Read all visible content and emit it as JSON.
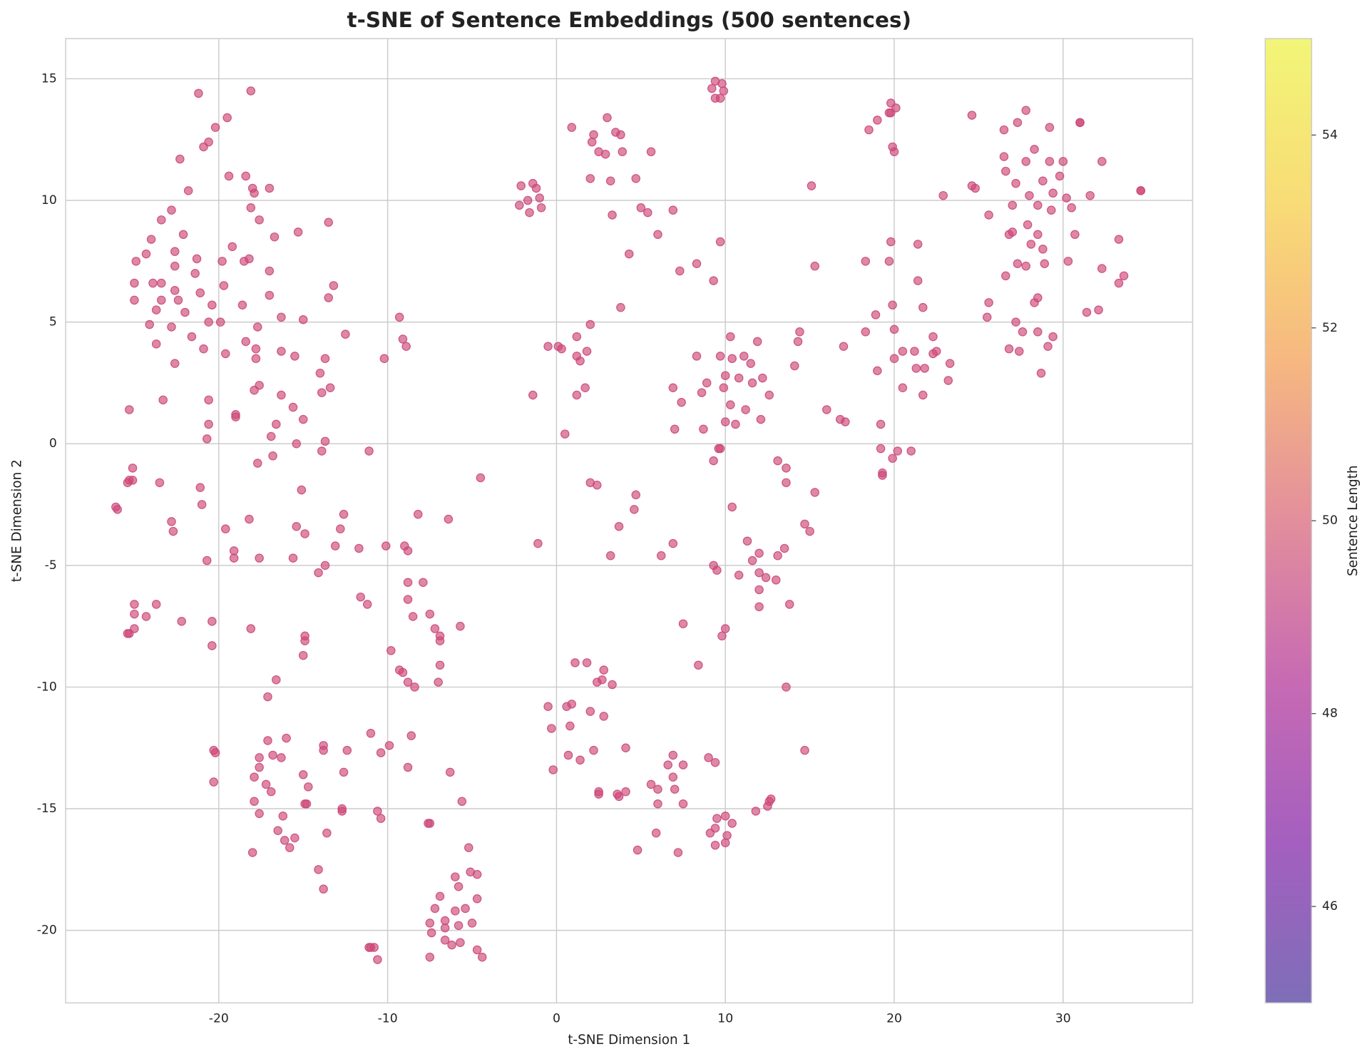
{
  "chart_data": {
    "type": "scatter",
    "title": "t-SNE of Sentence Embeddings (500 sentences)",
    "x_label": "t-SNE Dimension 1",
    "y_label": "t-SNE Dimension 2",
    "xlim": [
      -29.07,
      37.67
    ],
    "ylim": [
      -22.98,
      16.65
    ],
    "xticks": [
      -20,
      -10,
      0,
      10,
      20,
      30
    ],
    "yticks": [
      -20,
      -15,
      -10,
      -5,
      0,
      5,
      10,
      15
    ],
    "grid": true,
    "color": "#cc4778",
    "colorbar": {
      "label": "Sentence Length",
      "lim": [
        45,
        55
      ],
      "ticks": [
        46,
        48,
        50,
        52,
        54
      ],
      "colormap": [
        "#7e6eb8",
        "#a45fbf",
        "#c76ab3",
        "#e38e9c",
        "#f6b880",
        "#f8dc76",
        "#f2f677"
      ]
    },
    "x": [
      -21.2,
      -18.1,
      -19.5,
      -20.2,
      -20.6,
      -20.9,
      -22.3,
      -19.4,
      -18.4,
      -17.0,
      -18.0,
      -17.9,
      -21.8,
      -22.8,
      -23.4,
      -18.1,
      -17.6,
      -13.5,
      -22.1,
      -24.0,
      -16.7,
      -15.3,
      -24.3,
      -22.6,
      -19.2,
      -21.3,
      -19.8,
      -18.5,
      -18.2,
      -24.9,
      -22.6,
      -17.0,
      -21.4,
      -25.0,
      -23.9,
      -23.4,
      -19.7,
      -22.6,
      -21.1,
      -13.2,
      -25.0,
      -23.4,
      -22.4,
      -20.4,
      -18.6,
      -17.0,
      -13.5,
      -23.7,
      -22.0,
      -16.3,
      -15.0,
      -24.1,
      -22.8,
      -19.9,
      -20.6,
      -17.7,
      -12.5,
      -21.6,
      -18.4,
      -23.7,
      -20.9,
      -17.8,
      -16.3,
      -19.6,
      -17.8,
      -15.5,
      -13.7,
      -22.6,
      -14.0,
      -17.6,
      -17.9,
      -13.4,
      -13.9,
      -16.3,
      -23.3,
      -20.6,
      -15.6,
      -25.3,
      -19.0,
      -19.0,
      -15.0,
      -20.6,
      -16.6,
      -16.9,
      -20.7,
      -13.7,
      -15.4,
      -11.1,
      -13.9,
      -16.8,
      -17.7,
      -9.3,
      -9.1,
      -8.9,
      -10.2,
      -25.1,
      -25.3,
      -25.1,
      -25.4,
      -23.5,
      -21.1,
      -15.1,
      -26.1,
      -26.0,
      -21.0,
      -12.6,
      -8.2,
      -22.8,
      -18.2,
      -22.7,
      -19.6,
      -15.4,
      -14.9,
      -12.8,
      -13.1,
      -11.7,
      -10.1,
      -19.1,
      -20.7,
      -19.1,
      -17.6,
      -15.6,
      -13.7,
      -14.1,
      -9.0,
      -8.8,
      -8.8,
      -7.9,
      -6.4,
      -4.5,
      -11.6,
      -11.2,
      -8.8,
      -8.5,
      -25.0,
      -23.7,
      -25.0,
      -24.3,
      -22.2,
      -20.4,
      -25.0,
      -25.3,
      -25.4,
      -18.1,
      -14.9,
      -14.9,
      -20.4,
      -7.5,
      -7.2,
      -6.9,
      -6.9,
      -5.7,
      -15.0,
      -9.8,
      -6.9,
      -9.3,
      -9.1,
      -8.8,
      -8.4,
      -7.0,
      -16.6,
      -17.1,
      -11.0,
      -8.6,
      -9.9,
      -10.4,
      -17.1,
      -16.0,
      -13.8,
      -13.8,
      -12.4,
      -16.8,
      -17.6,
      -16.3,
      -20.3,
      -20.2,
      -17.6,
      -8.8,
      -6.3,
      -12.6,
      -15.0,
      -17.9,
      -20.3,
      -17.2,
      -14.7,
      -16.9,
      -17.9,
      -14.9,
      -14.8,
      -12.7,
      -12.7,
      -10.6,
      -17.6,
      -16.2,
      -10.4,
      -7.6,
      -7.5,
      -5.6,
      -16.5,
      -13.6,
      -15.5,
      -16.1,
      -15.8,
      -5.2,
      -18.0,
      -14.1,
      -4.7,
      -5.1,
      -6.0,
      -13.8,
      -5.8,
      -4.7,
      -6.9,
      -7.2,
      -6.0,
      -5.4,
      -7.5,
      -6.6,
      -5.8,
      -5.0,
      -6.6,
      -7.4,
      -6.6,
      -5.7,
      -6.2,
      -4.7,
      -11.1,
      -11.0,
      -10.8,
      -7.5,
      -4.4,
      -10.6,
      0.9,
      3.0,
      3.5,
      3.8,
      2.2,
      2.1,
      2.5,
      2.9,
      3.9,
      5.6,
      2.0,
      3.2,
      4.7,
      -2.1,
      -1.4,
      -1.2,
      -2.2,
      -1.7,
      -1.0,
      -0.9,
      -1.6,
      3.3,
      5.0,
      5.4,
      6.9,
      6.0,
      4.3,
      7.3,
      8.3,
      9.3,
      3.8,
      9.4,
      9.8,
      9.2,
      9.9,
      9.4,
      9.7,
      9.7,
      2.0,
      1.2,
      1.2,
      1.4,
      1.8,
      -0.5,
      0.1,
      0.3,
      1.7,
      1.2,
      -1.4,
      0.5,
      10.3,
      11.9,
      14.4,
      14.3,
      8.3,
      9.7,
      10.4,
      11.1,
      11.5,
      14.1,
      10.0,
      10.8,
      12.2,
      6.9,
      8.9,
      9.9,
      11.6,
      8.6,
      12.6,
      7.4,
      10.3,
      11.2,
      7.0,
      8.7,
      10.0,
      10.6,
      12.1,
      9.6,
      9.7,
      9.3,
      13.1,
      13.6,
      13.6,
      15.3,
      2.0,
      2.4,
      4.7,
      4.6,
      10.4,
      3.7,
      -1.1,
      3.2,
      6.9,
      6.2,
      14.7,
      15.0,
      11.3,
      12.0,
      13.5,
      11.6,
      13.1,
      9.3,
      9.5,
      10.8,
      12.0,
      12.4,
      13.0,
      12.0,
      12.0,
      13.8,
      7.5,
      10.0,
      9.8,
      8.4,
      13.6,
      1.1,
      1.8,
      2.8,
      2.4,
      2.7,
      3.3,
      -0.5,
      0.6,
      0.9,
      2.0,
      2.8,
      -0.3,
      0.8,
      4.1,
      2.2,
      0.7,
      1.4,
      -0.2,
      9.0,
      9.4,
      6.9,
      6.6,
      7.5,
      6.9,
      14.7,
      5.6,
      6.0,
      7.0,
      2.5,
      2.5,
      3.6,
      3.7,
      4.1,
      6.0,
      7.5,
      12.7,
      12.6,
      12.5,
      11.8,
      9.5,
      10.0,
      10.4,
      9.4,
      5.9,
      9.1,
      10.1,
      9.4,
      10.0,
      4.8,
      7.2,
      19.8,
      19.7,
      19.8,
      20.1,
      19.0,
      18.5,
      19.9,
      20.0,
      15.1,
      15.3,
      22.9,
      24.6,
      26.5,
      27.3,
      27.8,
      29.2,
      31.0,
      31.0,
      28.3,
      26.5,
      27.8,
      29.2,
      30.0,
      32.3,
      26.6,
      29.8,
      24.6,
      24.8,
      27.2,
      28.8,
      28.0,
      29.4,
      30.2,
      31.6,
      34.6,
      34.6,
      27.0,
      28.5,
      29.3,
      30.5,
      25.6,
      27.9,
      26.8,
      27.0,
      28.5,
      30.7,
      33.3,
      21.4,
      19.8,
      28.1,
      28.8,
      18.3,
      19.7,
      27.3,
      27.8,
      28.9,
      30.3,
      32.3,
      33.6,
      26.6,
      21.4,
      33.3,
      28.5,
      28.3,
      25.6,
      19.9,
      21.7,
      31.4,
      32.1,
      18.9,
      25.5,
      27.2,
      27.6,
      28.5,
      29.4,
      18.3,
      20.0,
      22.3,
      26.8,
      27.4,
      29.1,
      20.5,
      21.2,
      22.3,
      22.5,
      20.0,
      21.3,
      21.8,
      23.3,
      17.0,
      19.0,
      23.2,
      28.7,
      20.5,
      21.7,
      16.0,
      16.8,
      17.1,
      19.2,
      19.2,
      20.2,
      21.0,
      19.9,
      19.3,
      19.3
    ],
    "values": [
      14.4,
      14.5,
      13.4,
      13.0,
      12.4,
      12.2,
      11.7,
      11.0,
      11.0,
      10.5,
      10.5,
      10.3,
      10.4,
      9.6,
      9.2,
      9.7,
      9.2,
      9.1,
      8.6,
      8.4,
      8.5,
      8.7,
      7.8,
      7.9,
      8.1,
      7.6,
      7.5,
      7.5,
      7.6,
      7.5,
      7.3,
      7.1,
      7.0,
      6.6,
      6.6,
      6.6,
      6.5,
      6.3,
      6.2,
      6.5,
      5.9,
      5.9,
      5.9,
      5.7,
      5.7,
      6.1,
      6.0,
      5.5,
      5.4,
      5.2,
      5.1,
      4.9,
      4.8,
      5.0,
      5.0,
      4.8,
      4.5,
      4.4,
      4.2,
      4.1,
      3.9,
      3.9,
      3.8,
      3.7,
      3.5,
      3.6,
      3.5,
      3.3,
      2.9,
      2.4,
      2.2,
      2.3,
      2.1,
      2.0,
      1.8,
      1.8,
      1.5,
      1.4,
      1.1,
      1.2,
      1.0,
      0.8,
      0.8,
      0.3,
      0.2,
      0.1,
      0.0,
      -0.3,
      -0.3,
      -0.5,
      -0.8,
      5.2,
      4.3,
      4.0,
      3.5,
      -1.0,
      -1.5,
      -1.5,
      -1.6,
      -1.6,
      -1.8,
      -1.9,
      -2.6,
      -2.7,
      -2.5,
      -2.9,
      -2.9,
      -3.2,
      -3.1,
      -3.6,
      -3.5,
      -3.4,
      -3.7,
      -3.5,
      -4.2,
      -4.3,
      -4.2,
      -4.4,
      -4.8,
      -4.7,
      -4.7,
      -4.7,
      -5.0,
      -5.3,
      -4.2,
      -4.4,
      -5.7,
      -5.7,
      -3.1,
      -1.4,
      -6.3,
      -6.6,
      -6.4,
      -7.1,
      -6.6,
      -6.6,
      -7.0,
      -7.1,
      -7.3,
      -7.3,
      -7.6,
      -7.8,
      -7.8,
      -7.6,
      -7.9,
      -8.1,
      -8.3,
      -7.0,
      -7.6,
      -7.9,
      -8.1,
      -7.5,
      -8.7,
      -8.5,
      -9.1,
      -9.3,
      -9.4,
      -9.8,
      -10.0,
      -9.8,
      -9.7,
      -10.4,
      -11.9,
      -12.0,
      -12.4,
      -12.7,
      -12.2,
      -12.1,
      -12.4,
      -12.6,
      -12.6,
      -12.8,
      -12.9,
      -12.9,
      -12.6,
      -12.7,
      -13.3,
      -13.3,
      -13.5,
      -13.5,
      -13.6,
      -13.7,
      -13.9,
      -14.0,
      -14.1,
      -14.3,
      -14.7,
      -14.8,
      -14.8,
      -15.0,
      -15.1,
      -15.1,
      -15.2,
      -15.3,
      -15.4,
      -15.6,
      -15.6,
      -14.7,
      -15.9,
      -16.0,
      -16.2,
      -16.3,
      -16.6,
      -16.6,
      -16.8,
      -17.5,
      -17.7,
      -17.6,
      -17.8,
      -18.3,
      -18.2,
      -18.7,
      -18.6,
      -19.1,
      -19.2,
      -19.1,
      -19.7,
      -19.6,
      -19.8,
      -19.7,
      -19.9,
      -20.1,
      -20.4,
      -20.5,
      -20.6,
      -20.8,
      -20.7,
      -20.7,
      -20.7,
      -21.1,
      -21.1,
      -21.2,
      13.0,
      13.4,
      12.8,
      12.7,
      12.7,
      12.4,
      12.0,
      11.9,
      12.0,
      12.0,
      10.9,
      10.8,
      10.9,
      10.6,
      10.7,
      10.5,
      9.8,
      10.0,
      10.1,
      9.7,
      9.5,
      9.4,
      9.7,
      9.5,
      9.6,
      8.6,
      7.8,
      7.1,
      7.4,
      6.7,
      5.6,
      14.9,
      14.8,
      14.6,
      14.5,
      14.2,
      14.2,
      8.3,
      4.9,
      4.4,
      3.6,
      3.4,
      3.8,
      4.0,
      4.0,
      3.9,
      2.3,
      2.0,
      2.0,
      0.4,
      4.4,
      4.2,
      4.6,
      4.2,
      3.6,
      3.6,
      3.5,
      3.6,
      3.3,
      3.2,
      2.8,
      2.7,
      2.7,
      2.3,
      2.5,
      2.3,
      2.5,
      2.1,
      2.0,
      1.7,
      1.6,
      1.4,
      0.6,
      0.6,
      0.9,
      0.8,
      1.0,
      -0.2,
      -0.2,
      -0.7,
      -0.7,
      -1.0,
      -1.6,
      -2.0,
      -1.6,
      -1.7,
      -2.1,
      -2.7,
      -2.6,
      -3.4,
      -4.1,
      -4.6,
      -4.1,
      -4.6,
      -3.3,
      -3.6,
      -4.0,
      -4.5,
      -4.3,
      -4.8,
      -4.6,
      -5.0,
      -5.2,
      -5.4,
      -5.3,
      -5.5,
      -5.6,
      -6.0,
      -6.7,
      -6.6,
      -7.4,
      -7.6,
      -7.9,
      -9.1,
      -10.0,
      -9.0,
      -9.0,
      -9.3,
      -9.8,
      -9.7,
      -9.9,
      -10.8,
      -10.8,
      -10.7,
      -11.0,
      -11.2,
      -11.7,
      -11.6,
      -12.5,
      -12.6,
      -12.8,
      -13.0,
      -13.4,
      -12.9,
      -13.1,
      -12.8,
      -13.2,
      -13.2,
      -13.7,
      -12.6,
      -14.0,
      -14.2,
      -14.2,
      -14.3,
      -14.4,
      -14.4,
      -14.5,
      -14.3,
      -14.8,
      -14.8,
      -14.6,
      -14.7,
      -14.9,
      -15.1,
      -15.4,
      -15.3,
      -15.6,
      -15.8,
      -16.0,
      -16.0,
      -16.1,
      -16.5,
      -16.4,
      -16.7,
      -16.8,
      14.0,
      13.6,
      13.6,
      13.8,
      13.3,
      12.9,
      12.2,
      12.0,
      10.6,
      7.3,
      10.2,
      13.5,
      12.9,
      13.2,
      13.7,
      13.0,
      13.2,
      13.2,
      12.1,
      11.8,
      11.6,
      11.6,
      11.6,
      11.6,
      11.2,
      11.0,
      10.6,
      10.5,
      10.7,
      10.8,
      10.2,
      10.3,
      10.1,
      10.2,
      10.4,
      10.4,
      9.8,
      9.8,
      9.6,
      9.7,
      9.4,
      9.0,
      8.6,
      8.7,
      8.6,
      8.6,
      8.4,
      8.2,
      8.3,
      8.2,
      8.0,
      7.5,
      7.5,
      7.4,
      7.3,
      7.4,
      7.5,
      7.2,
      6.9,
      6.9,
      6.7,
      6.6,
      6.0,
      5.8,
      5.8,
      5.7,
      5.6,
      5.4,
      5.5,
      5.3,
      5.2,
      5.0,
      4.6,
      4.6,
      4.4,
      4.6,
      4.7,
      4.4,
      3.9,
      3.8,
      4.0,
      3.8,
      3.8,
      3.7,
      3.8,
      3.5,
      3.1,
      3.1,
      3.3,
      4.0,
      3.0,
      2.6,
      2.9,
      2.3,
      2.0,
      1.4,
      1.0,
      0.9,
      0.8,
      -0.2,
      -0.3,
      -0.3,
      -0.6,
      -1.2,
      -1.3
    ]
  }
}
